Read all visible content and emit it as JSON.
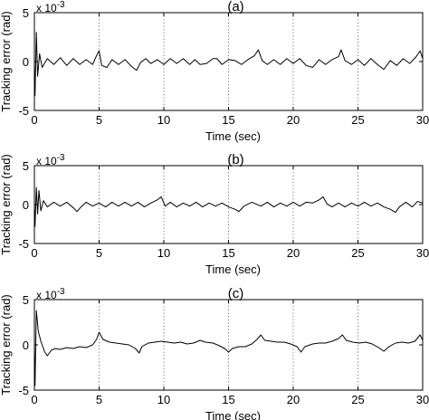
{
  "chart_data": [
    {
      "type": "line",
      "title": "(a)",
      "xlabel": "Time (sec)",
      "ylabel": "Tracking error (rad)",
      "scale_label": "x 10",
      "scale_exponent": "-3",
      "xlim": [
        0,
        30
      ],
      "ylim": [
        -5,
        5
      ],
      "x_ticks": [
        "0",
        "5",
        "10",
        "15",
        "20",
        "25",
        "30"
      ],
      "y_ticks": [
        "5",
        "0",
        "-5"
      ],
      "grid": "vertical-dotted",
      "series": [
        {
          "color": "#000000",
          "points": [
            [
              0,
              0
            ],
            [
              0.05,
              -3.5
            ],
            [
              0.15,
              3.0
            ],
            [
              0.25,
              -1.5
            ],
            [
              0.4,
              0.8
            ],
            [
              0.6,
              -0.6
            ],
            [
              1.0,
              0.3
            ],
            [
              1.5,
              -0.3
            ],
            [
              2.0,
              0.4
            ],
            [
              2.5,
              -0.4
            ],
            [
              3.0,
              0.3
            ],
            [
              3.5,
              -0.3
            ],
            [
              4.0,
              0.2
            ],
            [
              4.5,
              -0.3
            ],
            [
              4.8,
              0.6
            ],
            [
              5.0,
              1.1
            ],
            [
              5.2,
              -0.4
            ],
            [
              5.6,
              -0.6
            ],
            [
              6.0,
              0.2
            ],
            [
              6.5,
              -0.3
            ],
            [
              7.0,
              0.2
            ],
            [
              7.5,
              -0.5
            ],
            [
              7.9,
              -0.9
            ],
            [
              8.2,
              -0.1
            ],
            [
              8.6,
              0.3
            ],
            [
              9.0,
              -0.2
            ],
            [
              9.5,
              0.2
            ],
            [
              10.0,
              -0.3
            ],
            [
              10.5,
              0.3
            ],
            [
              11.0,
              -0.2
            ],
            [
              11.5,
              0.3
            ],
            [
              12.0,
              -0.3
            ],
            [
              12.4,
              0.2
            ],
            [
              12.8,
              -0.3
            ],
            [
              13.3,
              -0.2
            ],
            [
              13.8,
              0.3
            ],
            [
              14.1,
              0.3
            ],
            [
              14.5,
              -0.3
            ],
            [
              15.0,
              0.2
            ],
            [
              15.5,
              0.1
            ],
            [
              16.0,
              -0.3
            ],
            [
              16.5,
              0.2
            ],
            [
              17.0,
              0.6
            ],
            [
              17.3,
              1.2
            ],
            [
              17.6,
              0.1
            ],
            [
              18.0,
              -0.3
            ],
            [
              18.5,
              0.2
            ],
            [
              19.0,
              -0.3
            ],
            [
              19.5,
              0.3
            ],
            [
              20.0,
              -0.2
            ],
            [
              20.5,
              0.3
            ],
            [
              21.0,
              -0.4
            ],
            [
              21.5,
              -0.6
            ],
            [
              22.0,
              0.2
            ],
            [
              22.5,
              -0.3
            ],
            [
              23.0,
              0.2
            ],
            [
              23.5,
              0.5
            ],
            [
              23.7,
              1.2
            ],
            [
              24.0,
              0.1
            ],
            [
              24.5,
              -0.3
            ],
            [
              25.0,
              0.2
            ],
            [
              25.5,
              -0.4
            ],
            [
              26.0,
              0.3
            ],
            [
              26.5,
              -0.3
            ],
            [
              27.0,
              -0.8
            ],
            [
              27.5,
              0.1
            ],
            [
              28.0,
              -0.4
            ],
            [
              28.5,
              0.3
            ],
            [
              29.0,
              -0.2
            ],
            [
              29.5,
              0.5
            ],
            [
              29.8,
              1.1
            ],
            [
              30.0,
              0.3
            ]
          ]
        }
      ]
    },
    {
      "type": "line",
      "title": "(b)",
      "xlabel": "Time (sec)",
      "ylabel": "Tracking error (rad)",
      "scale_label": "x 10",
      "scale_exponent": "-3",
      "xlim": [
        0,
        30
      ],
      "ylim": [
        -5,
        5
      ],
      "x_ticks": [
        "0",
        "5",
        "10",
        "15",
        "20",
        "25",
        "30"
      ],
      "y_ticks": [
        "5",
        "0",
        "-5"
      ],
      "grid": "vertical-dotted",
      "series": [
        {
          "color": "#000000",
          "points": [
            [
              0,
              0
            ],
            [
              0.05,
              -2.8
            ],
            [
              0.15,
              2.2
            ],
            [
              0.25,
              -1.2
            ],
            [
              0.35,
              1.8
            ],
            [
              0.5,
              -0.8
            ],
            [
              0.7,
              0.5
            ],
            [
              1.0,
              -0.3
            ],
            [
              1.5,
              0.3
            ],
            [
              2.0,
              -0.2
            ],
            [
              2.5,
              0.3
            ],
            [
              3.0,
              -0.4
            ],
            [
              3.3,
              -0.9
            ],
            [
              3.6,
              -0.3
            ],
            [
              4.0,
              0.3
            ],
            [
              4.5,
              -0.2
            ],
            [
              5.0,
              0.2
            ],
            [
              5.5,
              -0.3
            ],
            [
              6.0,
              0.3
            ],
            [
              6.5,
              -0.2
            ],
            [
              7.0,
              0.3
            ],
            [
              7.5,
              -0.2
            ],
            [
              8.0,
              0.3
            ],
            [
              8.5,
              -0.3
            ],
            [
              9.0,
              0.2
            ],
            [
              9.5,
              0.6
            ],
            [
              9.8,
              1.0
            ],
            [
              10.1,
              -0.2
            ],
            [
              10.5,
              0.3
            ],
            [
              11.0,
              -0.3
            ],
            [
              11.5,
              0.2
            ],
            [
              12.0,
              -0.2
            ],
            [
              12.5,
              0.3
            ],
            [
              13.0,
              -0.3
            ],
            [
              13.5,
              0.2
            ],
            [
              14.0,
              -0.2
            ],
            [
              14.5,
              0.2
            ],
            [
              15.0,
              -0.3
            ],
            [
              15.5,
              -0.6
            ],
            [
              15.8,
              -0.9
            ],
            [
              16.2,
              -0.2
            ],
            [
              16.8,
              0.3
            ],
            [
              17.5,
              -0.2
            ],
            [
              18.0,
              0.3
            ],
            [
              18.5,
              -0.3
            ],
            [
              19.0,
              0.2
            ],
            [
              19.5,
              -0.2
            ],
            [
              20.0,
              0.3
            ],
            [
              20.5,
              -0.2
            ],
            [
              21.0,
              0.3
            ],
            [
              21.5,
              0.2
            ],
            [
              22.0,
              0.6
            ],
            [
              22.3,
              1.0
            ],
            [
              22.6,
              0.1
            ],
            [
              23.0,
              -0.3
            ],
            [
              23.5,
              0.2
            ],
            [
              24.0,
              -0.3
            ],
            [
              24.5,
              0.2
            ],
            [
              25.0,
              -0.2
            ],
            [
              25.5,
              0.3
            ],
            [
              26.0,
              -0.2
            ],
            [
              26.5,
              0.2
            ],
            [
              27.0,
              -0.3
            ],
            [
              27.5,
              -0.6
            ],
            [
              27.9,
              -1.0
            ],
            [
              28.2,
              -0.3
            ],
            [
              28.7,
              0.3
            ],
            [
              29.2,
              -0.3
            ],
            [
              29.6,
              0.4
            ],
            [
              30.0,
              0.2
            ]
          ]
        }
      ]
    },
    {
      "type": "line",
      "title": "(c)",
      "xlabel": "Time (sec)",
      "ylabel": "Tracking error (rad)",
      "scale_label": "x 10",
      "scale_exponent": "-3",
      "xlim": [
        0,
        30
      ],
      "ylim": [
        -5,
        5
      ],
      "x_ticks": [
        "0",
        "5",
        "10",
        "15",
        "20",
        "25",
        "30"
      ],
      "y_ticks": [
        "5",
        "0",
        "-5"
      ],
      "grid": "vertical-dotted",
      "series": [
        {
          "color": "#000000",
          "points": [
            [
              0,
              0
            ],
            [
              0.05,
              -4.5
            ],
            [
              0.15,
              3.8
            ],
            [
              0.3,
              1.5
            ],
            [
              0.5,
              0.4
            ],
            [
              0.8,
              -0.8
            ],
            [
              1.0,
              -1.2
            ],
            [
              1.3,
              -0.6
            ],
            [
              1.6,
              -0.4
            ],
            [
              2.0,
              -0.5
            ],
            [
              2.5,
              -0.3
            ],
            [
              3.0,
              -0.4
            ],
            [
              3.5,
              -0.2
            ],
            [
              4.0,
              -0.3
            ],
            [
              4.5,
              0.0
            ],
            [
              4.8,
              0.6
            ],
            [
              5.0,
              1.4
            ],
            [
              5.3,
              0.6
            ],
            [
              5.8,
              0.3
            ],
            [
              6.3,
              0.2
            ],
            [
              6.8,
              0.1
            ],
            [
              7.3,
              0.0
            ],
            [
              7.8,
              -0.4
            ],
            [
              8.1,
              -0.9
            ],
            [
              8.3,
              -0.2
            ],
            [
              8.8,
              0.2
            ],
            [
              9.3,
              0.3
            ],
            [
              9.8,
              0.4
            ],
            [
              10.3,
              0.3
            ],
            [
              10.8,
              0.2
            ],
            [
              11.3,
              0.3
            ],
            [
              11.8,
              0.1
            ],
            [
              12.3,
              0.2
            ],
            [
              12.8,
              0.5
            ],
            [
              13.2,
              0.3
            ],
            [
              13.8,
              0.2
            ],
            [
              14.3,
              -0.1
            ],
            [
              14.7,
              -0.4
            ],
            [
              15.0,
              -0.8
            ],
            [
              15.3,
              -0.4
            ],
            [
              15.8,
              -0.2
            ],
            [
              16.3,
              -0.2
            ],
            [
              16.8,
              0.1
            ],
            [
              17.2,
              0.6
            ],
            [
              17.5,
              1.1
            ],
            [
              17.8,
              0.5
            ],
            [
              18.3,
              0.4
            ],
            [
              18.8,
              0.3
            ],
            [
              19.3,
              0.3
            ],
            [
              19.8,
              0.1
            ],
            [
              20.3,
              -0.2
            ],
            [
              20.6,
              -0.8
            ],
            [
              20.9,
              -0.2
            ],
            [
              21.5,
              0.1
            ],
            [
              22.0,
              0.2
            ],
            [
              22.5,
              0.2
            ],
            [
              23.0,
              0.4
            ],
            [
              23.5,
              0.7
            ],
            [
              23.8,
              1.1
            ],
            [
              24.1,
              0.5
            ],
            [
              24.6,
              0.3
            ],
            [
              25.1,
              0.2
            ],
            [
              25.6,
              0.3
            ],
            [
              26.1,
              0.1
            ],
            [
              26.6,
              -0.3
            ],
            [
              27.0,
              -0.7
            ],
            [
              27.4,
              -0.2
            ],
            [
              27.9,
              0.2
            ],
            [
              28.4,
              0.3
            ],
            [
              28.9,
              0.2
            ],
            [
              29.4,
              0.4
            ],
            [
              29.8,
              1.1
            ],
            [
              30.0,
              0.5
            ]
          ]
        }
      ]
    }
  ]
}
